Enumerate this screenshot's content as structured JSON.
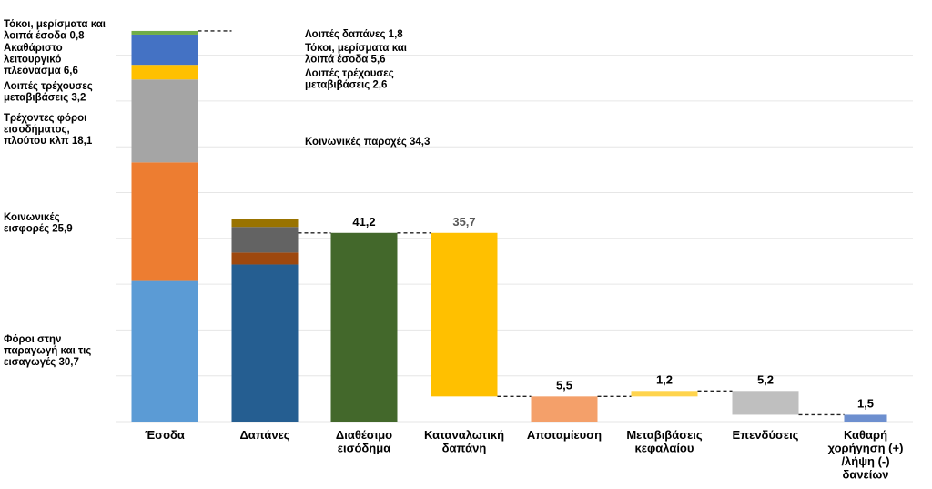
{
  "chart_data": {
    "type": "bar",
    "ylim": [
      0,
      85
    ],
    "grid": true,
    "categories": [
      "Έσοδα",
      "Δαπάνες",
      "Διαθέσιμο εισόδημα",
      "Καταναλωτική δαπάνη",
      "Αποταμίευση",
      "Μεταβιβάσεις κεφαλαίου",
      "Επενδύσεις",
      "Καθαρή χορήγηση (+) /λήψη (-) δανείων"
    ],
    "stacks": [
      {
        "category": "Έσοδα",
        "segments": [
          {
            "label": "Φόροι στην παραγωγή και τις εισαγωγές 30,7",
            "value": 30.7,
            "color": "#5b9bd5"
          },
          {
            "label": "Κοινωνικές εισφορές 25,9",
            "value": 25.9,
            "color": "#ed7d31"
          },
          {
            "label": "Τρέχοντες φόροι εισοδήματος, πλούτου κλπ 18,1",
            "value": 18.1,
            "color": "#a5a5a5"
          },
          {
            "label": "Λοιπές τρέχουσες μεταβιβάσεις 3,2",
            "value": 3.2,
            "color": "#ffc000"
          },
          {
            "label": "Ακαθάριστο λειτουργικό πλεόνασμα 6,6",
            "value": 6.6,
            "color": "#4472c4"
          },
          {
            "label": "Τόκοι, μερίσματα και λοιπά έσοδα 0,8",
            "value": 0.8,
            "color": "#70ad47"
          }
        ]
      },
      {
        "category": "Δαπάνες",
        "segments": [
          {
            "label": "Κοινωνικές παροχές 34,3",
            "value": 34.3,
            "color": "#255e91"
          },
          {
            "label": "Λοιπές τρέχουσες μεταβιβάσεις 2,6",
            "value": 2.6,
            "color": "#9e480e"
          },
          {
            "label": "Τόκοι, μερίσματα και λοιπά έσοδα 5,6",
            "value": 5.6,
            "color": "#636363"
          },
          {
            "label": "Λοιπές δαπάνες 1,8",
            "value": 1.8,
            "color": "#997300"
          }
        ]
      }
    ],
    "floating": [
      {
        "category": "Διαθέσιμο εισόδημα",
        "bottom": 0,
        "top": 41.2,
        "label": "41,2",
        "color": "#43682b",
        "label_color": "#000000"
      },
      {
        "category": "Καταναλωτική δαπάνη",
        "bottom": 5.5,
        "top": 41.2,
        "label": "35,7",
        "color": "#ffc000",
        "label_color": "#595959"
      },
      {
        "category": "Αποταμίευση",
        "bottom": 0,
        "top": 5.5,
        "label": "5,5",
        "color": "#f4a06a",
        "label_color": "#000000"
      },
      {
        "category": "Μεταβιβάσεις κεφαλαίου",
        "bottom": 5.5,
        "top": 6.7,
        "label": "1,2",
        "color": "#ffd44d",
        "label_color": "#000000"
      },
      {
        "category": "Επενδύσεις",
        "bottom": 1.5,
        "top": 6.7,
        "label": "5,2",
        "color": "#bfbfbf",
        "label_color": "#000000"
      },
      {
        "category": "Καθαρή χορήγηση (+) /λήψη (-) δανείων",
        "bottom": 0,
        "top": 1.5,
        "label": "1,5",
        "color": "#6d8fcf",
        "label_color": "#000000"
      }
    ]
  }
}
